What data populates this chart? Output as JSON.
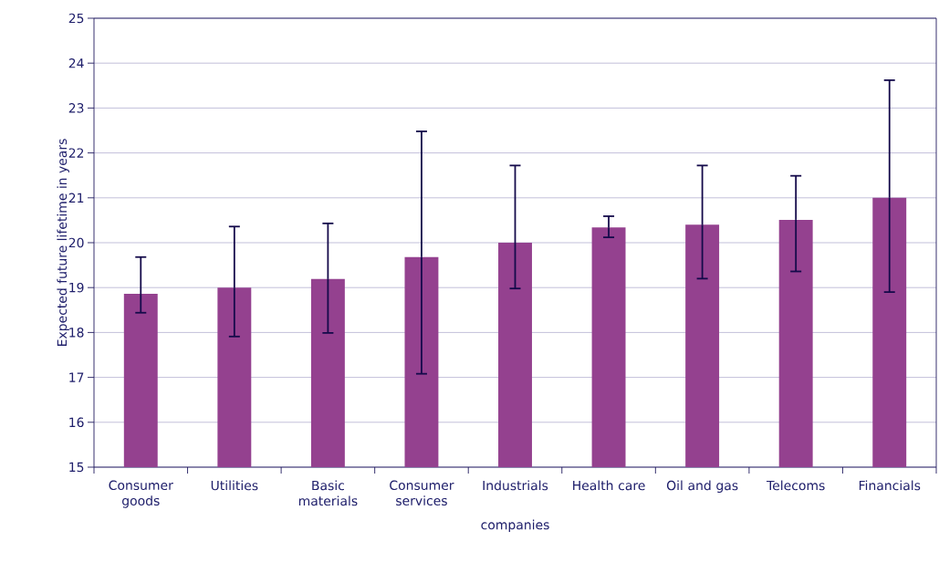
{
  "chart_data": {
    "type": "bar",
    "xlabel": "companies",
    "ylabel": "Expected future lifetime in years",
    "categories": [
      "Consumer goods",
      "Utilities",
      "Basic materials",
      "Consumer services",
      "Industrials",
      "Health care",
      "Oil and gas",
      "Telecoms",
      "Financials"
    ],
    "values": [
      18.86,
      19.0,
      19.19,
      19.68,
      20.0,
      20.34,
      20.4,
      20.51,
      21.0
    ],
    "errors": [
      [
        18.44,
        19.68
      ],
      [
        17.91,
        20.36
      ],
      [
        17.99,
        20.43
      ],
      [
        17.08,
        22.48
      ],
      [
        18.98,
        21.72
      ],
      [
        20.12,
        20.59
      ],
      [
        19.2,
        21.72
      ],
      [
        19.36,
        21.49
      ],
      [
        18.9,
        23.62
      ]
    ],
    "color": "#94418f",
    "ylim": [
      15,
      25
    ],
    "yticks": [
      15,
      16,
      17,
      18,
      19,
      20,
      21,
      22,
      23,
      24,
      25
    ],
    "grid": "y"
  }
}
